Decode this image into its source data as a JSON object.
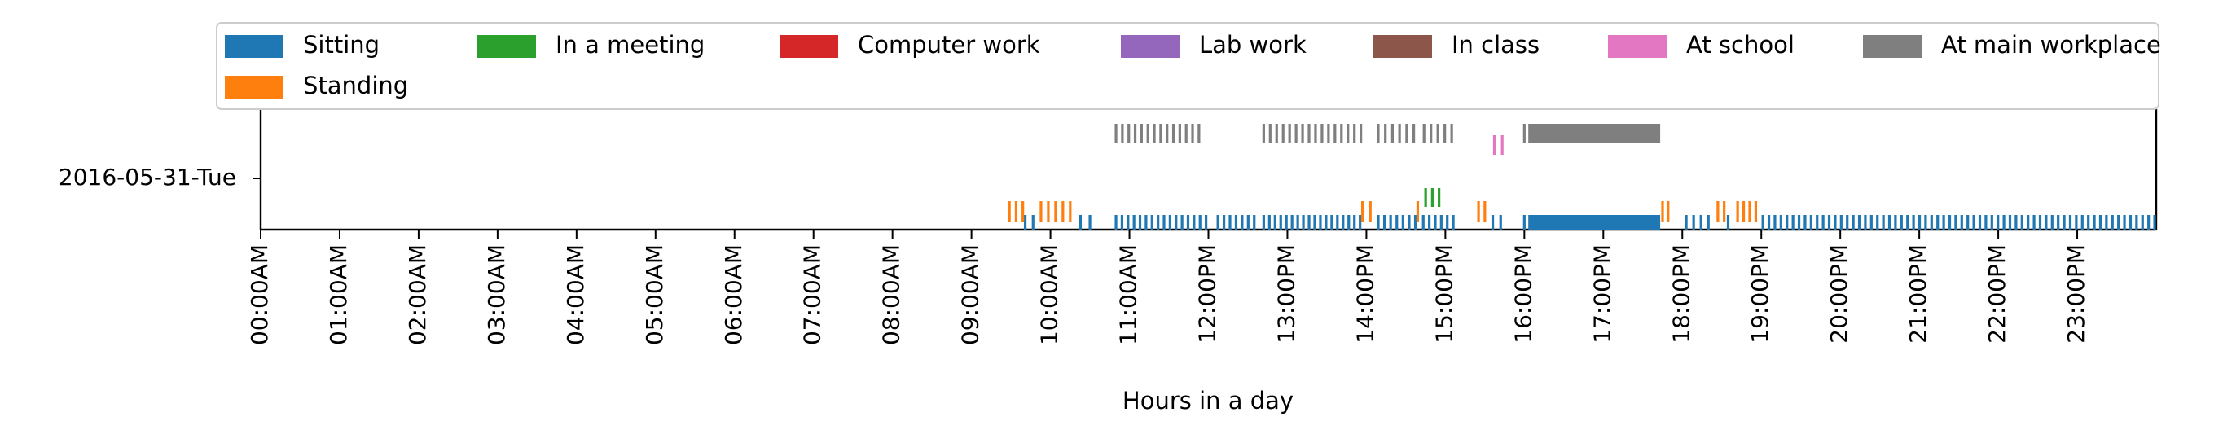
{
  "chart_data": {
    "type": "event-strip",
    "xlabel": "Hours in a day",
    "xlim": [
      0,
      24
    ],
    "row_label": "2016-05-31-Tue",
    "x_ticks": [
      {
        "value": 0,
        "label": "00:00AM"
      },
      {
        "value": 1,
        "label": "01:00AM"
      },
      {
        "value": 2,
        "label": "02:00AM"
      },
      {
        "value": 3,
        "label": "03:00AM"
      },
      {
        "value": 4,
        "label": "04:00AM"
      },
      {
        "value": 5,
        "label": "05:00AM"
      },
      {
        "value": 6,
        "label": "06:00AM"
      },
      {
        "value": 7,
        "label": "07:00AM"
      },
      {
        "value": 8,
        "label": "08:00AM"
      },
      {
        "value": 9,
        "label": "09:00AM"
      },
      {
        "value": 10,
        "label": "10:00AM"
      },
      {
        "value": 11,
        "label": "11:00AM"
      },
      {
        "value": 12,
        "label": "12:00PM"
      },
      {
        "value": 13,
        "label": "13:00PM"
      },
      {
        "value": 14,
        "label": "14:00PM"
      },
      {
        "value": 15,
        "label": "15:00PM"
      },
      {
        "value": 16,
        "label": "16:00PM"
      },
      {
        "value": 17,
        "label": "17:00PM"
      },
      {
        "value": 18,
        "label": "18:00PM"
      },
      {
        "value": 19,
        "label": "19:00PM"
      },
      {
        "value": 20,
        "label": "20:00PM"
      },
      {
        "value": 21,
        "label": "21:00PM"
      },
      {
        "value": 22,
        "label": "22:00PM"
      },
      {
        "value": 23,
        "label": "23:00PM"
      }
    ],
    "legend_position": "top",
    "legend": [
      {
        "label": "Sitting",
        "color": "#1f77b4"
      },
      {
        "label": "In a meeting",
        "color": "#2ca02c"
      },
      {
        "label": "Computer work",
        "color": "#d62728"
      },
      {
        "label": "Lab work",
        "color": "#9467bd"
      },
      {
        "label": "In class",
        "color": "#8c564b"
      },
      {
        "label": "At school",
        "color": "#e377c2"
      },
      {
        "label": "At main workplace",
        "color": "#7f7f7f"
      },
      {
        "label": "Standing",
        "color": "#ff7f0e"
      }
    ],
    "series": [
      {
        "name": "Sitting",
        "color": "#1f77b4",
        "level": 0,
        "runs": [
          [
            9.68,
            9.78,
            2
          ],
          [
            10.38,
            10.5,
            2
          ],
          [
            10.83,
            11.97,
            16
          ],
          [
            12.12,
            12.58,
            7
          ],
          [
            12.7,
            13.92,
            18
          ],
          [
            14.15,
            14.62,
            7
          ],
          [
            14.72,
            15.1,
            6
          ],
          [
            15.6,
            15.7,
            2
          ],
          [
            16.0,
            16.05,
            1
          ],
          [
            18.05,
            18.33,
            4
          ],
          [
            18.58,
            18.62,
            1
          ],
          [
            19.02,
            23.98,
            66
          ]
        ],
        "blocks": [
          [
            16.05,
            17.72
          ]
        ]
      },
      {
        "name": "Standing",
        "color": "#ff7f0e",
        "level": 1,
        "runs": [
          [
            9.48,
            9.65,
            3
          ],
          [
            9.88,
            10.25,
            5
          ],
          [
            13.95,
            14.05,
            2
          ],
          [
            14.65,
            14.65,
            1
          ],
          [
            15.42,
            15.5,
            2
          ],
          [
            17.75,
            17.82,
            2
          ],
          [
            18.45,
            18.53,
            2
          ],
          [
            18.7,
            18.93,
            4
          ]
        ],
        "blocks": []
      },
      {
        "name": "In a meeting",
        "color": "#2ca02c",
        "level": 2,
        "runs": [
          [
            14.75,
            14.92,
            3
          ]
        ],
        "blocks": []
      },
      {
        "name": "At school",
        "color": "#e377c2",
        "level": 3,
        "runs": [
          [
            15.62,
            15.72,
            2
          ]
        ],
        "blocks": []
      },
      {
        "name": "At main workplace",
        "color": "#7f7f7f",
        "level": 4,
        "runs": [
          [
            10.83,
            11.88,
            14
          ],
          [
            12.7,
            13.93,
            16
          ],
          [
            14.15,
            14.6,
            6
          ],
          [
            14.73,
            15.08,
            5
          ],
          [
            16.0,
            16.0,
            1
          ]
        ],
        "blocks": [
          [
            16.05,
            17.72
          ]
        ]
      }
    ]
  }
}
